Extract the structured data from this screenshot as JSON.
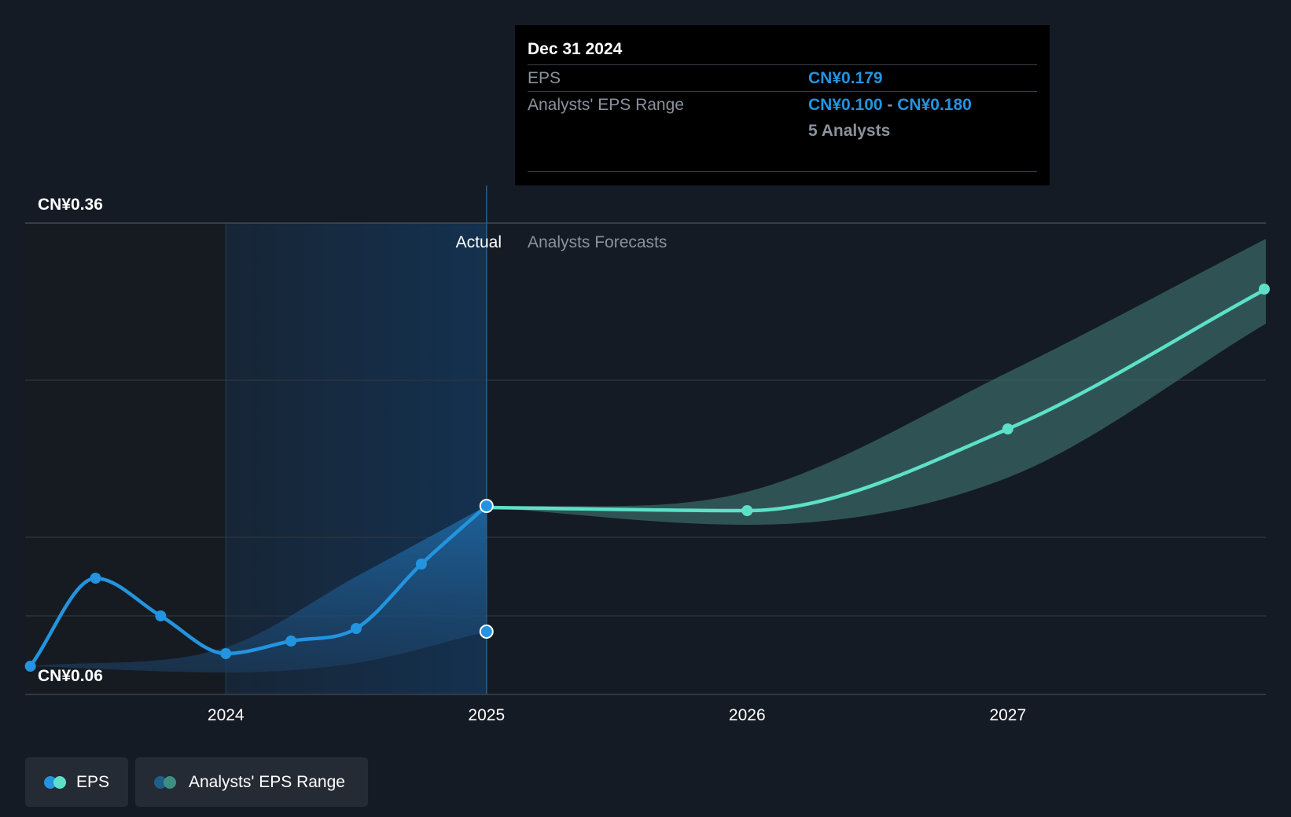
{
  "chart_data": {
    "type": "line",
    "y_axis": {
      "top_label": "CN¥0.36",
      "bottom_label": "CN¥0.06",
      "ylim": [
        0.06,
        0.36
      ],
      "gridlines": [
        0.06,
        0.11,
        0.16,
        0.26,
        0.36
      ]
    },
    "x_axis": {
      "ticks": [
        "2024",
        "2025",
        "2026",
        "2027"
      ],
      "xlim": [
        2023.23,
        2027.99
      ]
    },
    "regions": {
      "actual_label": "Actual",
      "forecast_label": "Analysts Forecasts",
      "divider_x": 2025.0,
      "highlight_start_x": 2024.0
    },
    "series": [
      {
        "name": "EPS",
        "role": "actual",
        "color": "#2394df",
        "points": [
          {
            "x": 2023.25,
            "y": 0.078
          },
          {
            "x": 2023.5,
            "y": 0.134
          },
          {
            "x": 2023.75,
            "y": 0.11
          },
          {
            "x": 2024.0,
            "y": 0.086
          },
          {
            "x": 2024.25,
            "y": 0.094
          },
          {
            "x": 2024.5,
            "y": 0.102
          },
          {
            "x": 2024.75,
            "y": 0.143
          },
          {
            "x": 2025.0,
            "y": 0.18
          }
        ]
      },
      {
        "name": "EPS",
        "role": "forecast",
        "color": "#5ee0c8",
        "points": [
          {
            "x": 2025.0,
            "y": 0.179
          },
          {
            "x": 2026.0,
            "y": 0.177
          },
          {
            "x": 2027.0,
            "y": 0.229
          },
          {
            "x": 2027.99,
            "y": 0.318
          }
        ]
      }
    ],
    "range_actual": {
      "name": "Analysts' EPS Range",
      "upper": [
        {
          "x": 2023.25,
          "y": 0.078
        },
        {
          "x": 2024.0,
          "y": 0.09
        },
        {
          "x": 2024.5,
          "y": 0.135
        },
        {
          "x": 2025.0,
          "y": 0.18
        }
      ],
      "lower": [
        {
          "x": 2023.25,
          "y": 0.078
        },
        {
          "x": 2024.0,
          "y": 0.074
        },
        {
          "x": 2024.5,
          "y": 0.08
        },
        {
          "x": 2025.0,
          "y": 0.1
        }
      ],
      "marker": {
        "x": 2025.0,
        "y": 0.1
      }
    },
    "range_forecast": {
      "name": "Analysts' EPS Range",
      "upper": [
        {
          "x": 2025.0,
          "y": 0.179
        },
        {
          "x": 2026.0,
          "y": 0.189
        },
        {
          "x": 2027.0,
          "y": 0.265
        },
        {
          "x": 2027.99,
          "y": 0.35
        }
      ],
      "lower": [
        {
          "x": 2025.0,
          "y": 0.179
        },
        {
          "x": 2026.0,
          "y": 0.168
        },
        {
          "x": 2027.0,
          "y": 0.198
        },
        {
          "x": 2027.99,
          "y": 0.296
        }
      ]
    },
    "tooltip": {
      "date": "Dec 31 2024",
      "eps_label": "EPS",
      "eps_value": "CN¥0.179",
      "range_label": "Analysts' EPS Range",
      "range_low": "CN¥0.100",
      "range_sep": "-",
      "range_high": "CN¥0.180",
      "analysts": "5 Analysts"
    },
    "legend": [
      {
        "label": "EPS",
        "colors": [
          "#2394df",
          "#5ee0c8"
        ]
      },
      {
        "label": "Analysts' EPS Range",
        "colors": [
          "#1d5f8a",
          "#3d8f84"
        ]
      }
    ]
  }
}
